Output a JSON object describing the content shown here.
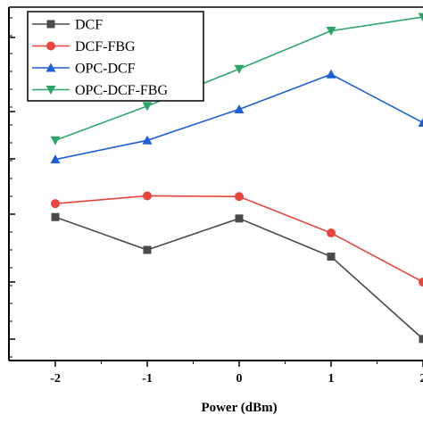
{
  "chart_data": {
    "type": "line",
    "xlabel": "Power (dBm)",
    "ylabel": "",
    "x": [
      -2,
      -1,
      0,
      1,
      2
    ],
    "x_tick_labels": [
      "-2",
      "-1",
      "0",
      "1",
      "2"
    ],
    "xlim": [
      -2.5,
      2.0
    ],
    "ylim": [
      0,
      100
    ],
    "series": [
      {
        "name": "DCF",
        "color": "#4a4a4a",
        "marker": "square",
        "values": [
          40.6,
          31.3,
          40.2,
          29.4,
          6.1
        ]
      },
      {
        "name": "DCF-FBG",
        "color": "#e8453c",
        "marker": "circle",
        "values": [
          44.4,
          46.6,
          46.4,
          36.1,
          22.2
        ]
      },
      {
        "name": "OPC-DCF",
        "color": "#1f5fd6",
        "marker": "triangle-up",
        "values": [
          56.9,
          62.3,
          71.1,
          81.0,
          67.3
        ]
      },
      {
        "name": "OPC-DCF-FBG",
        "color": "#2ea66a",
        "marker": "triangle-down",
        "values": [
          62.3,
          72.0,
          82.5,
          93.3,
          97.2
        ]
      }
    ],
    "legend_position": "top-left",
    "grid": false
  }
}
